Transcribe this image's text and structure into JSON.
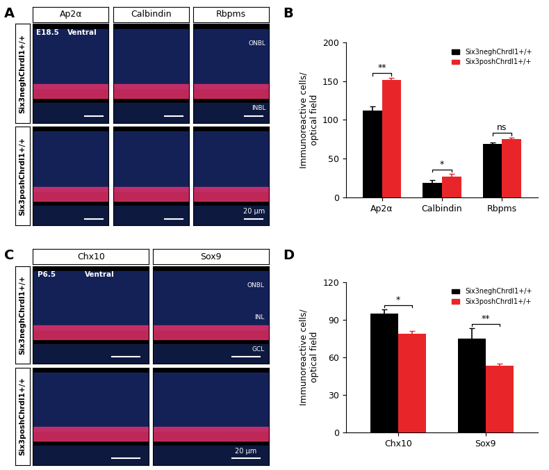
{
  "image_panels": [
    {
      "panel_label": "A",
      "columns": [
        "Ap2α",
        "Calbindin",
        "Rbpms"
      ],
      "rows": [
        "Six3neghChrdl1+/+",
        "Six3poshChrdl1+/+"
      ],
      "stage": "E18.5",
      "region": "Ventral",
      "layers": [
        "ONBL",
        "INBL"
      ],
      "scale_bar": "20 μm"
    },
    {
      "panel_label": "C",
      "columns": [
        "Chx10",
        "Sox9"
      ],
      "rows": [
        "Six3neghChrdl1+/+",
        "Six3poshChrdl1+/+"
      ],
      "stage": "P6.5",
      "region": "Ventral",
      "layers": [
        "ONBL",
        "INL",
        "GCL"
      ],
      "scale_bar": "20 μm"
    }
  ],
  "chart_data": [
    {
      "panel_label": "B",
      "type": "bar",
      "ylabel": "Immunoreactive cells/\noptical field",
      "categories": [
        "Ap2α",
        "Calbindin",
        "Rbpms"
      ],
      "series": [
        {
          "name": "Six3neghChrdl1+/+",
          "color": "#000000",
          "values": [
            112,
            19,
            69
          ],
          "errors": [
            5,
            3,
            2
          ]
        },
        {
          "name": "Six3poshChrdl1+/+",
          "color": "#e8262a",
          "values": [
            151,
            27,
            75
          ],
          "errors": [
            3,
            3,
            2
          ]
        }
      ],
      "significance": [
        "**",
        "*",
        "ns"
      ],
      "ylim": [
        0,
        200
      ],
      "yticks": [
        0,
        50,
        100,
        150,
        200
      ],
      "legend": "upper right"
    },
    {
      "panel_label": "D",
      "type": "bar",
      "ylabel": "Immunoreactive cells/\noptical field",
      "categories": [
        "Chx10",
        "Sox9"
      ],
      "series": [
        {
          "name": "Six3neghChrdl1+/+",
          "color": "#000000",
          "values": [
            95,
            75
          ],
          "errors": [
            3,
            8
          ]
        },
        {
          "name": "Six3poshChrdl1+/+",
          "color": "#e8262a",
          "values": [
            79,
            53
          ],
          "errors": [
            2,
            2
          ]
        }
      ],
      "significance": [
        "*",
        "**"
      ],
      "ylim": [
        0,
        120
      ],
      "yticks": [
        0,
        30,
        60,
        90,
        120
      ],
      "legend": "upper right"
    }
  ]
}
